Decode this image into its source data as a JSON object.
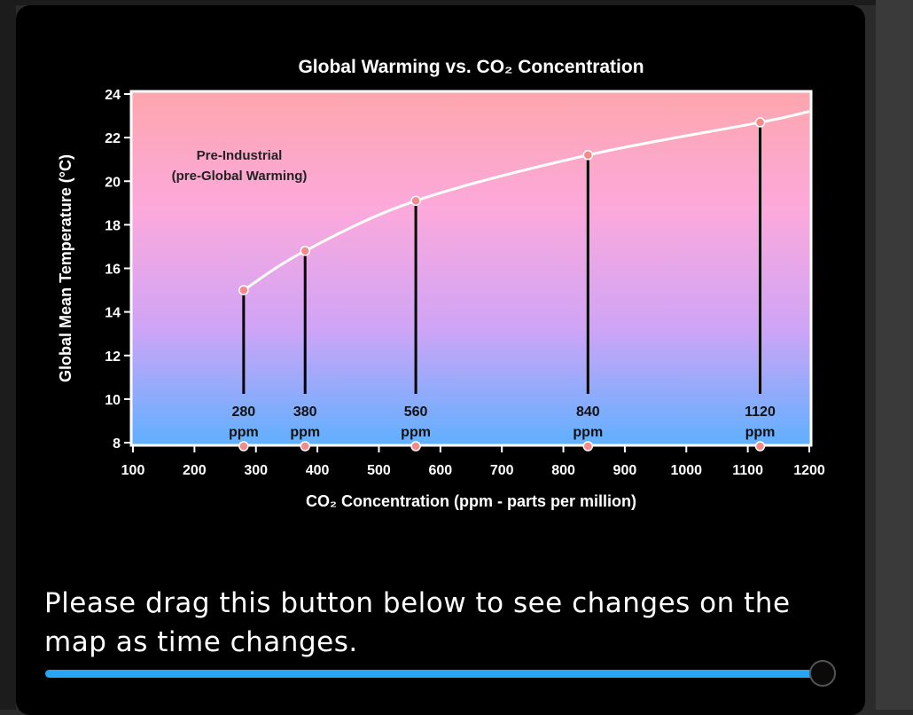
{
  "chart_data": {
    "type": "line",
    "title": "Global Warming vs. CO₂ Concentration",
    "xlabel": "CO₂ Concentration (ppm - parts per million)",
    "ylabel": "Global Mean Temperature (°C)",
    "xlim": [
      100,
      1200
    ],
    "ylim": [
      8,
      24
    ],
    "x_ticks": [
      100,
      200,
      300,
      400,
      500,
      600,
      700,
      800,
      900,
      1000,
      1100,
      1200
    ],
    "y_ticks": [
      8,
      10,
      12,
      14,
      16,
      18,
      20,
      22,
      24
    ],
    "series": [
      {
        "x": [
          280,
          380,
          560,
          840,
          1120,
          1200
        ],
        "y": [
          15.0,
          16.8,
          19.1,
          21.2,
          22.7,
          23.2
        ]
      }
    ],
    "markers": [
      {
        "ppm": 280,
        "temp": 15.0,
        "label_value": "280",
        "label_unit": "ppm"
      },
      {
        "ppm": 380,
        "temp": 16.8,
        "label_value": "380",
        "label_unit": "ppm"
      },
      {
        "ppm": 560,
        "temp": 19.1,
        "label_value": "560",
        "label_unit": "ppm"
      },
      {
        "ppm": 840,
        "temp": 21.2,
        "label_value": "840",
        "label_unit": "ppm"
      },
      {
        "ppm": 1120,
        "temp": 22.7,
        "label_value": "1120",
        "label_unit": "ppm"
      }
    ],
    "annotation": {
      "line1": "Pre-Industrial",
      "line2": "(pre-Global Warming)"
    },
    "background_gradient": [
      "#fda6ad",
      "#fca9dc",
      "#d0a4f6",
      "#5fb0ff"
    ],
    "grid": false
  },
  "instruction_text": "Please drag this button below to see changes on the map as time changes.",
  "slider": {
    "value_fraction": 1.0,
    "track_color": "#29a3f4"
  }
}
